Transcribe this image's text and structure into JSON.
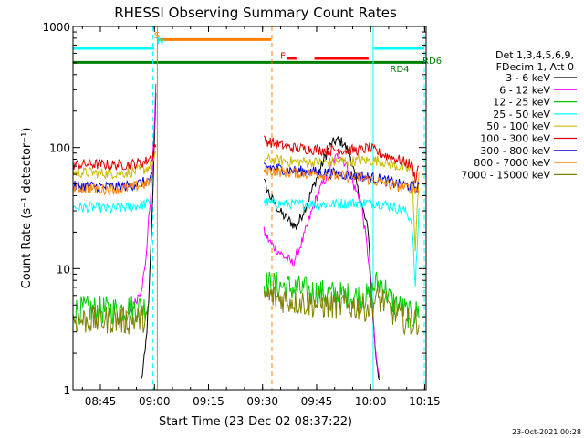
{
  "chart_data": {
    "type": "line",
    "title": "RHESSI Observing Summary Count Rates",
    "xlabel": "Start Time (23-Dec-02 08:37:22)",
    "ylabel": "Count Rate (s⁻¹ detector⁻¹)",
    "yscale": "log",
    "ylim": [
      1,
      1000
    ],
    "xlim_minutes": [
      0,
      98
    ],
    "x_ticks": [
      {
        "label": "08:45",
        "minute": 7.6
      },
      {
        "label": "09:00",
        "minute": 22.6
      },
      {
        "label": "09:15",
        "minute": 37.6
      },
      {
        "label": "09:30",
        "minute": 52.6
      },
      {
        "label": "09:45",
        "minute": 67.6
      },
      {
        "label": "10:00",
        "minute": 82.6
      },
      {
        "label": "10:15",
        "minute": 97.6
      }
    ],
    "y_ticks": [
      {
        "label": "1",
        "value": 1
      },
      {
        "label": "10",
        "value": 10
      },
      {
        "label": "100",
        "value": 100
      },
      {
        "label": "1000",
        "value": 1000
      }
    ],
    "legend": {
      "position": "right",
      "header": [
        "Det 1,3,4,5,6,9,",
        "FDecim 1, Att 0"
      ],
      "entries": [
        {
          "label": "3 - 6 keV",
          "color": "#000000"
        },
        {
          "label": "6 - 12 keV",
          "color": "#ff00ff"
        },
        {
          "label": "12 - 25 keV",
          "color": "#00cc00"
        },
        {
          "label": "25 - 50 keV",
          "color": "#00ffff"
        },
        {
          "label": "50 - 100 keV",
          "color": "#ccbb00"
        },
        {
          "label": "100 - 300 keV",
          "color": "#dd0000"
        },
        {
          "label": "300 - 800 keV",
          "color": "#0000dd"
        },
        {
          "label": "800 - 7000 keV",
          "color": "#ff8000"
        },
        {
          "label": "7000 - 15000 keV",
          "color": "#808000"
        }
      ]
    },
    "series": [
      {
        "name": "3 - 6 keV",
        "color": "#000000",
        "x": [
          19,
          20,
          21,
          22,
          23,
          53,
          55,
          58,
          62,
          65,
          68,
          71,
          73,
          75,
          77,
          79,
          82,
          83,
          84,
          85
        ],
        "y": [
          1.2,
          2,
          5,
          30,
          300,
          52,
          38,
          28,
          22,
          35,
          60,
          100,
          115,
          110,
          85,
          45,
          20,
          5,
          2,
          1.2
        ]
      },
      {
        "name": "6 - 12 keV",
        "color": "#ff00ff",
        "x": [
          15,
          17,
          19,
          20,
          21,
          22,
          23,
          53,
          55,
          58,
          61,
          64,
          66,
          68,
          70,
          72,
          74,
          76,
          78,
          80,
          82,
          83,
          84,
          85
        ],
        "y": [
          4,
          5,
          7,
          10,
          25,
          60,
          330,
          20,
          16,
          13,
          11,
          18,
          28,
          42,
          55,
          75,
          90,
          70,
          48,
          35,
          12,
          5,
          2,
          1.2
        ]
      },
      {
        "name": "12 - 25 keV",
        "color": "#00cc00",
        "x": [
          0,
          5,
          10,
          15,
          20,
          21,
          53,
          60,
          65,
          70,
          75,
          80,
          82,
          84,
          86,
          88,
          90,
          92,
          94,
          96
        ],
        "y": [
          4.5,
          4.6,
          4.5,
          4.7,
          4.8,
          5,
          7.5,
          7,
          6.5,
          6.2,
          6,
          5.8,
          5.8,
          7.5,
          7.5,
          5.5,
          5,
          4.5,
          4,
          4.5
        ]
      },
      {
        "name": "25 - 50 keV",
        "color": "#00ffff",
        "x": [
          0,
          5,
          10,
          15,
          20,
          22,
          53,
          60,
          70,
          80,
          84,
          88,
          92,
          94,
          95,
          96
        ],
        "y": [
          32,
          32,
          31,
          32,
          34,
          36,
          35,
          34,
          34,
          35,
          35,
          33,
          30,
          25,
          7,
          30
        ]
      },
      {
        "name": "50 - 100 keV",
        "color": "#ccbb00",
        "x": [
          0,
          5,
          10,
          15,
          20,
          22,
          23,
          53,
          60,
          70,
          80,
          85,
          90,
          94,
          95,
          96
        ],
        "y": [
          62,
          62,
          61,
          62,
          66,
          72,
          85,
          80,
          77,
          75,
          78,
          78,
          70,
          65,
          15,
          60
        ]
      },
      {
        "name": "100 - 300 keV",
        "color": "#dd0000",
        "x": [
          0,
          5,
          10,
          15,
          20,
          22,
          23,
          53,
          60,
          70,
          80,
          82,
          85,
          90,
          94,
          95,
          96
        ],
        "y": [
          72,
          73,
          72,
          72,
          76,
          85,
          110,
          115,
          100,
          95,
          95,
          100,
          90,
          80,
          72,
          55,
          72
        ]
      },
      {
        "name": "300 - 800 keV",
        "color": "#0000dd",
        "x": [
          0,
          5,
          10,
          15,
          20,
          22,
          53,
          60,
          70,
          80,
          85,
          90,
          96
        ],
        "y": [
          48,
          48,
          47,
          48,
          52,
          56,
          70,
          65,
          62,
          58,
          55,
          50,
          47
        ]
      },
      {
        "name": "800 - 7000 keV",
        "color": "#ff8000",
        "x": [
          0,
          5,
          10,
          15,
          20,
          22,
          53,
          60,
          70,
          80,
          85,
          90,
          96
        ],
        "y": [
          46,
          46,
          45,
          46,
          50,
          54,
          65,
          62,
          60,
          56,
          52,
          48,
          45
        ]
      },
      {
        "name": "7000 - 15000 keV",
        "color": "#808000",
        "x": [
          0,
          5,
          10,
          15,
          20,
          21,
          53,
          60,
          65,
          70,
          75,
          80,
          82,
          84,
          86,
          88,
          90,
          92,
          94,
          96
        ],
        "y": [
          3.8,
          3.7,
          3.8,
          3.7,
          3.9,
          4,
          6,
          5.5,
          5.2,
          5,
          5,
          4.8,
          4.8,
          5.5,
          5.5,
          4.5,
          4.2,
          3.8,
          3.5,
          3.8
        ]
      }
    ],
    "annotations": [
      {
        "label": "S",
        "color": "#ff8000",
        "minute": 22.5,
        "y": 800
      },
      {
        "label": "N",
        "color": "#00ffff",
        "minute": 23.3,
        "y": 720
      },
      {
        "label": "F",
        "color": "#ff0000",
        "minute": 57.5,
        "y": 540
      },
      {
        "label": "RD6",
        "color": "#008000",
        "minute": 97,
        "y": 490
      },
      {
        "label": "RD4",
        "color": "#008000",
        "minute": 88,
        "y": 420
      }
    ],
    "state_bars": [
      {
        "name": "night",
        "color": "#00ffff",
        "y": 660,
        "ranges": [
          [
            0,
            22.5
          ],
          [
            83.5,
            97.5
          ]
        ]
      },
      {
        "name": "saa",
        "color": "#ff8000",
        "y": 780,
        "ranges": [
          [
            23.5,
            55
          ]
        ]
      },
      {
        "name": "flare",
        "color": "#ff0000",
        "y": 545,
        "ranges": [
          [
            59.5,
            62
          ],
          [
            67,
            82
          ]
        ]
      },
      {
        "name": "decimation",
        "color": "#008000",
        "y": 505,
        "ranges": [
          [
            0,
            98
          ]
        ]
      }
    ],
    "markers": [
      {
        "color": "#00ffff",
        "minute": 22.2,
        "style": "dashed"
      },
      {
        "color": "#ff8000",
        "minute": 23.4,
        "style": "solid"
      },
      {
        "color": "#ff8000",
        "minute": 55.2,
        "style": "dashed"
      },
      {
        "color": "#00ffff",
        "minute": 83.3,
        "style": "solid"
      },
      {
        "color": "#00ffff",
        "minute": 97.5,
        "style": "dashed"
      }
    ],
    "footer_date": "23-Oct-2021 00:28"
  }
}
